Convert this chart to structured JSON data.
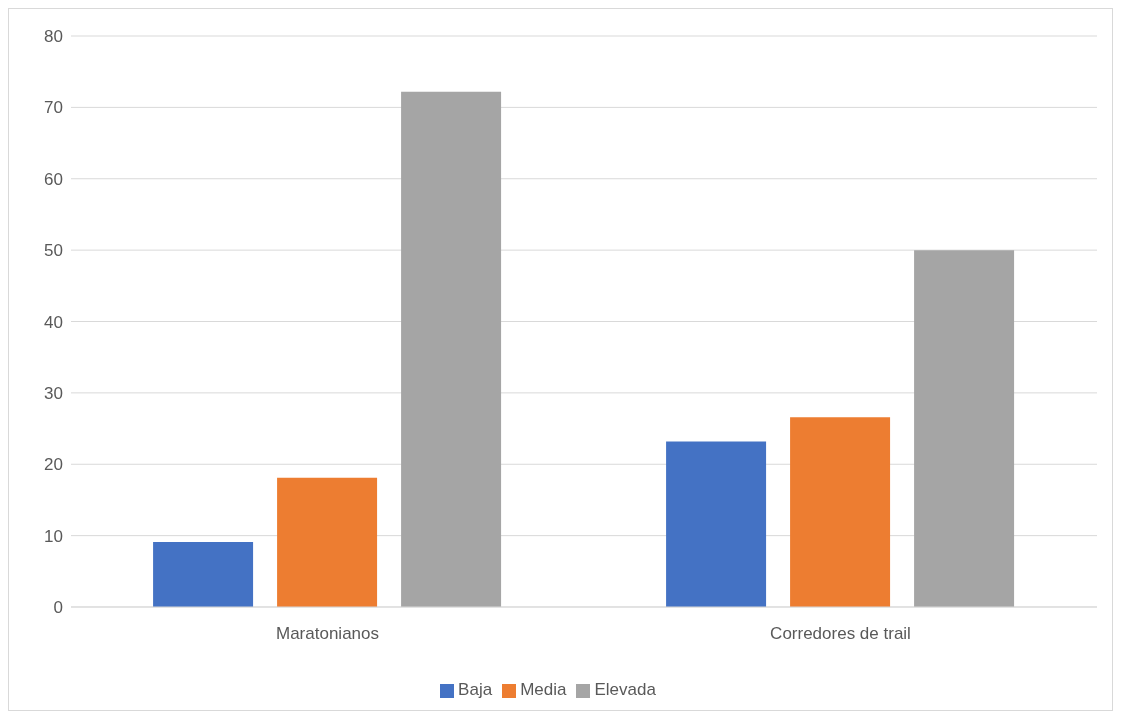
{
  "chart_data": {
    "type": "bar",
    "categories": [
      "Maratonianos",
      "Corredores de trail"
    ],
    "series": [
      {
        "name": "Baja",
        "color": "#4472c4",
        "values": [
          9.1,
          23.2
        ]
      },
      {
        "name": "Media",
        "color": "#ed7d31",
        "values": [
          18.1,
          26.6
        ]
      },
      {
        "name": "Elevada",
        "color": "#a5a5a5",
        "values": [
          72.2,
          50.0
        ]
      }
    ],
    "ylim": [
      0,
      80
    ],
    "yticks": [
      0,
      10,
      20,
      30,
      40,
      50,
      60,
      70,
      80
    ],
    "grid": "y",
    "legend": "bottom"
  }
}
